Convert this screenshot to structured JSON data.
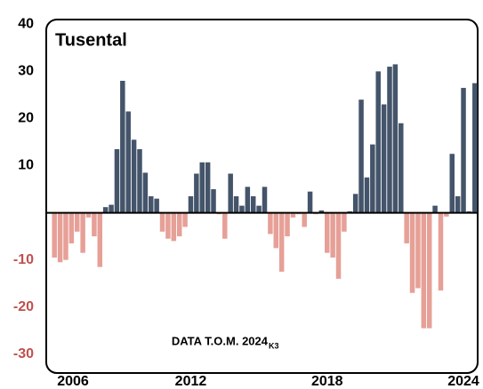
{
  "chart_data": {
    "type": "bar",
    "title": "Tusental",
    "annotation": {
      "text": "DATA T.O.M. 2024",
      "subscript": "K3"
    },
    "categories": [
      "2006",
      null,
      null,
      null,
      null,
      null,
      null,
      null,
      null,
      null,
      null,
      null,
      null,
      null,
      null,
      null,
      null,
      null,
      null,
      null,
      null,
      null,
      null,
      null,
      "2012",
      null,
      null,
      null,
      null,
      null,
      null,
      null,
      null,
      null,
      null,
      null,
      null,
      null,
      null,
      null,
      null,
      null,
      null,
      null,
      null,
      null,
      null,
      null,
      "2018",
      null,
      null,
      null,
      null,
      null,
      null,
      null,
      null,
      null,
      null,
      null,
      null,
      null,
      null,
      null,
      null,
      null,
      null,
      null,
      null,
      null,
      null,
      null,
      "2024",
      null,
      null
    ],
    "values": [
      -9.5,
      -10.5,
      -10,
      -6.5,
      -4,
      -8.5,
      -1,
      -5,
      -11.5,
      1.2,
      1.7,
      13.5,
      28,
      21.5,
      15.5,
      13.5,
      8.5,
      3.5,
      3,
      -4,
      -5.5,
      -6,
      -5,
      -3,
      3.5,
      8.3,
      10.7,
      10.7,
      5,
      -0.3,
      -5.5,
      8.3,
      3.5,
      1.5,
      5.5,
      3.5,
      1.5,
      5.5,
      -4.5,
      -7.5,
      -12.5,
      -5,
      -1,
      -0.3,
      -3,
      4.5,
      -0.3,
      0.5,
      -8.5,
      -9.5,
      -14,
      -4,
      0.3,
      4,
      24,
      7.5,
      14.5,
      30,
      23,
      31,
      31.5,
      19,
      -6.5,
      -17,
      -16,
      -24.5,
      -24.5,
      1.5,
      -16.5,
      -0.8,
      12.5,
      3.5,
      26.5,
      0.3,
      27.5
    ],
    "color": "#44546a",
    "negative_color": "#e6a097",
    "ylim": [
      -34,
      41
    ],
    "yticks": [
      -30,
      -20,
      -10,
      10,
      20,
      30,
      40
    ],
    "tick_color": "#000000",
    "negative_tick_color": "#c0504d"
  }
}
